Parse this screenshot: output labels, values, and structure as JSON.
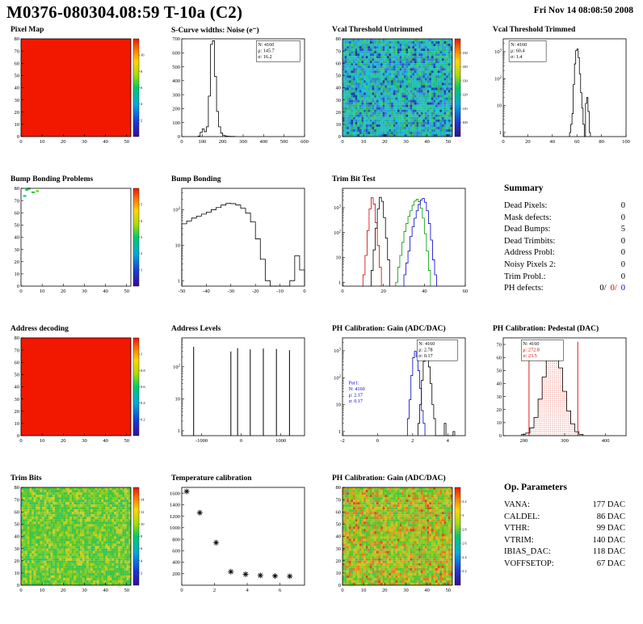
{
  "header": {
    "title": "M0376-080304.08:59 T-10a (C2)",
    "date": "Fri Nov 14 08:08:50 2008"
  },
  "summary": {
    "title": "Summary",
    "rows": [
      {
        "label": "Dead Pixels:",
        "value": "0"
      },
      {
        "label": "Mask defects:",
        "value": "0"
      },
      {
        "label": "Dead Bumps:",
        "value": "5"
      },
      {
        "label": "Dead Trimbits:",
        "value": "0"
      },
      {
        "label": "Address Probl:",
        "value": "0"
      },
      {
        "label": "Noisy Pixels 2:",
        "value": "0"
      },
      {
        "label": "Trim Probl.:",
        "value": "0"
      }
    ],
    "ph_defects_label": "PH defects:",
    "ph_defects": [
      "0/",
      "0/",
      "0"
    ]
  },
  "op_parameters": {
    "title": "Op. Parameters",
    "rows": [
      {
        "label": "VANA:",
        "value": "177 DAC"
      },
      {
        "label": "CALDEL:",
        "value": "86 DAC"
      },
      {
        "label": "VTHR:",
        "value": "99 DAC"
      },
      {
        "label": "VTRIM:",
        "value": "140 DAC"
      },
      {
        "label": "IBIAS_DAC:",
        "value": "118 DAC"
      },
      {
        "label": "VOFFSETOP:",
        "value": "67 DAC"
      }
    ]
  },
  "chart_data": [
    {
      "type": "heatmap",
      "title": "Pixel Map",
      "x_range": [
        0,
        52
      ],
      "x_ticks": [
        0,
        10,
        20,
        30,
        40,
        50
      ],
      "y_range": [
        0,
        80
      ],
      "y_ticks": [
        0,
        10,
        20,
        30,
        40,
        50,
        60,
        70,
        80
      ],
      "heatmap": {
        "mode": "uniform",
        "color": "#f21800"
      },
      "colorbar": {
        "labels": [
          "2",
          "4",
          "6",
          "8",
          "10"
        ]
      }
    },
    {
      "type": "hist",
      "title": "S-Curve widths: Noise (e⁻)",
      "x_range": [
        0,
        600
      ],
      "x_ticks": [
        0,
        100,
        200,
        300,
        400,
        500,
        600
      ],
      "y_range": [
        0,
        700
      ],
      "y_ticks": [
        0,
        100,
        200,
        300,
        400,
        500,
        600,
        700
      ],
      "series": [
        {
          "color": "#000000",
          "start": 80,
          "width": 10,
          "values": [
            4,
            30,
            55,
            35,
            70,
            290,
            660,
            690,
            430,
            180,
            70,
            25,
            10,
            5,
            3,
            2,
            1,
            1
          ]
        }
      ],
      "stats": [
        {
          "boxed": true,
          "px": 0.62,
          "py": 0.02,
          "w": 54,
          "lines": [
            {
              "t": "N: 4160",
              "c": "#000000"
            },
            {
              "t": "μ: 145.7",
              "c": "#000000"
            },
            {
              "t": "σ: 16.2",
              "c": "#000000"
            }
          ]
        }
      ]
    },
    {
      "type": "heatmap",
      "title": "Vcal Threshold Untrimmed",
      "x_range": [
        0,
        52
      ],
      "x_ticks": [
        0,
        10,
        20,
        30,
        40,
        50
      ],
      "y_range": [
        0,
        80
      ],
      "y_ticks": [
        0,
        10,
        20,
        30,
        40,
        50,
        60,
        70,
        80
      ],
      "heatmap": {
        "mode": "noise",
        "seed": 73,
        "cols": 52,
        "rows": 40,
        "colors": [
          "#2db35c",
          "#25c49a",
          "#1fc0c8",
          "#2aa3d4",
          "#2e7fd4",
          "#2257c0",
          "#16409c",
          "#38cc74"
        ],
        "weights": [
          0.13,
          0.17,
          0.2,
          0.17,
          0.13,
          0.09,
          0.05,
          0.06
        ]
      },
      "colorbar": {
        "labels": [
          "100",
          "110",
          "120",
          "130",
          "140",
          "150"
        ]
      }
    },
    {
      "type": "hist",
      "title": "Vcal Threshold Trimmed",
      "y_log": true,
      "x_range": [
        0,
        100
      ],
      "x_ticks": [
        0,
        20,
        40,
        60,
        80,
        100
      ],
      "y_range": [
        0.7,
        3000
      ],
      "y_ticks": [
        1,
        10,
        100,
        1000
      ],
      "y_tick_labels": [
        "1",
        "10",
        "10^2",
        "10^3"
      ],
      "series": [
        {
          "color": "#000000",
          "start": 54,
          "width": 1,
          "values": [
            1,
            2,
            5,
            60,
            350,
            1100,
            1250,
            600,
            150,
            30,
            8,
            2,
            0,
            12,
            20,
            6,
            1
          ]
        }
      ],
      "stats": [
        {
          "boxed": true,
          "px": 0.06,
          "py": 0.02,
          "w": 46,
          "lines": [
            {
              "t": "N: 4160",
              "c": "#000000"
            },
            {
              "t": "μ: 60.4",
              "c": "#000000"
            },
            {
              "t": "σ: 1.4",
              "c": "#000000"
            }
          ]
        }
      ]
    },
    {
      "type": "heatmap",
      "title": "Bump Bonding Problems",
      "x_range": [
        0,
        52
      ],
      "x_ticks": [
        0,
        10,
        20,
        30,
        40,
        50
      ],
      "y_range": [
        0,
        80
      ],
      "y_ticks": [
        0,
        10,
        20,
        30,
        40,
        50,
        60,
        70,
        80
      ],
      "heatmap": {
        "mode": "sparse",
        "base": "#ffffff",
        "points": [
          [
            2,
            78,
            "#22cc44"
          ],
          [
            5,
            76,
            "#22cc44"
          ],
          [
            1,
            73,
            "#00ccaa"
          ],
          [
            3,
            79,
            "#22cc44"
          ],
          [
            7,
            77,
            "#66dd22"
          ]
        ]
      },
      "colorbar": {
        "labels": [
          "1",
          "2",
          "3",
          "4",
          "5"
        ]
      }
    },
    {
      "type": "hist",
      "title": "Bump Bonding",
      "y_log": true,
      "x_range": [
        -50,
        0
      ],
      "x_ticks": [
        -50,
        -40,
        -30,
        -20,
        -10,
        0
      ],
      "y_range": [
        0.7,
        400
      ],
      "y_ticks": [
        1,
        10,
        100
      ],
      "y_tick_labels": [
        "1",
        "10",
        "10^2"
      ],
      "series": [
        {
          "color": "#000000",
          "start": -50,
          "width": 2,
          "values": [
            40,
            48,
            58,
            66,
            75,
            85,
            100,
            115,
            135,
            150,
            148,
            135,
            110,
            80,
            45,
            15,
            4,
            1,
            0,
            0,
            0,
            0,
            1,
            5,
            2
          ]
        }
      ]
    },
    {
      "type": "hist",
      "title": "Trim Bit Test",
      "y_log": true,
      "x_range": [
        0,
        60
      ],
      "x_ticks": [
        0,
        20,
        40,
        60
      ],
      "y_range": [
        0.7,
        6000
      ],
      "y_ticks": [
        1,
        10,
        100,
        1000
      ],
      "y_tick_labels": [
        "1",
        "10",
        "10^2",
        "10^3"
      ],
      "series": [
        {
          "color": "#cc0000",
          "start": 10,
          "width": 1,
          "values": [
            2,
            12,
            120,
            900,
            2500,
            1400,
            250,
            30,
            4
          ]
        },
        {
          "color": "#000000",
          "start": 14,
          "width": 1,
          "values": [
            3,
            20,
            150,
            900,
            2600,
            1800,
            400,
            60,
            8
          ]
        },
        {
          "color": "#009900",
          "start": 26,
          "width": 1,
          "values": [
            1,
            4,
            12,
            40,
            110,
            230,
            450,
            750,
            1250,
            1850,
            2200,
            1750,
            950,
            380,
            90,
            18,
            3
          ]
        },
        {
          "color": "#0000cc",
          "start": 30,
          "width": 1,
          "values": [
            2,
            6,
            18,
            70,
            170,
            380,
            750,
            1350,
            2050,
            2350,
            1650,
            750,
            230,
            50,
            8,
            2
          ]
        }
      ]
    },
    {
      "type": "heatmap",
      "title": "Address decoding",
      "x_range": [
        0,
        52
      ],
      "x_ticks": [
        0,
        10,
        20,
        30,
        40,
        50
      ],
      "y_range": [
        0,
        80
      ],
      "y_ticks": [
        0,
        10,
        20,
        30,
        40,
        50,
        60,
        70,
        80
      ],
      "heatmap": {
        "mode": "uniform",
        "color": "#f21800"
      },
      "colorbar": {
        "labels": [
          "0.2",
          "0.4",
          "0.6",
          "0.8",
          "1"
        ]
      }
    },
    {
      "type": "spikes",
      "title": "Address Levels",
      "y_log": true,
      "x_range": [
        -1500,
        1600
      ],
      "x_ticks": [
        -1000,
        0,
        1000
      ],
      "y_range": [
        0.7,
        800
      ],
      "y_ticks": [
        1,
        10,
        100
      ],
      "y_tick_labels": [
        "1",
        "10",
        "10^2"
      ],
      "spikes": {
        "color": "#000000",
        "positions": [
          -1200,
          -260,
          -90,
          230,
          560,
          890,
          1220
        ],
        "heights": [
          420,
          300,
          380,
          350,
          370,
          360,
          330
        ]
      }
    },
    {
      "type": "hist",
      "title": "PH Calibration: Gain (ADC/DAC)",
      "y_log": true,
      "x_range": [
        -2,
        5
      ],
      "x_ticks": [
        -2,
        0,
        2,
        4
      ],
      "y_range": [
        0.7,
        3000
      ],
      "y_ticks": [
        1,
        10,
        100,
        1000
      ],
      "y_tick_labels": [
        "1",
        "10",
        "10^2",
        "10^3"
      ],
      "series": [
        {
          "color": "#0000cc",
          "start": 1.7,
          "width": 0.1,
          "values": [
            3,
            15,
            120,
            550,
            950,
            600,
            180,
            40,
            6,
            2
          ]
        },
        {
          "color": "#000000",
          "start": 2.3,
          "width": 0.1,
          "values": [
            2,
            10,
            80,
            400,
            950,
            700,
            250,
            60,
            10,
            3,
            0,
            0,
            0,
            0,
            0,
            2,
            0,
            0,
            0,
            0,
            1
          ]
        }
      ],
      "stats": [
        {
          "boxed": true,
          "px": 0.62,
          "py": 0.02,
          "w": 50,
          "lines": [
            {
              "t": "N: 4160",
              "c": "#000000"
            },
            {
              "t": "μ: 2.78",
              "c": "#000000"
            },
            {
              "t": "σ: 0.17",
              "c": "#000000"
            }
          ]
        },
        {
          "boxed": false,
          "px": 0.05,
          "py": 0.42,
          "lines": [
            {
              "t": "Par1:",
              "c": "#0000cc"
            },
            {
              "t": "N: 4160",
              "c": "#0000cc"
            },
            {
              "t": "μ: 2.17",
              "c": "#0000cc"
            },
            {
              "t": "σ: 0.17",
              "c": "#0000cc"
            }
          ]
        }
      ]
    },
    {
      "type": "hist",
      "title": "PH Calibration: Pedestal (DAC)",
      "x_range": [
        150,
        450
      ],
      "x_ticks": [
        200,
        300,
        400
      ],
      "y_range": [
        0,
        75
      ],
      "y_ticks": [
        0,
        10,
        20,
        30,
        40,
        50,
        60,
        70
      ],
      "series": [
        {
          "color": "#000000",
          "fill": "dots",
          "start": 195,
          "width": 10,
          "values": [
            1,
            2,
            6,
            14,
            28,
            45,
            61,
            70,
            66,
            52,
            34,
            19,
            9,
            3,
            1
          ]
        }
      ],
      "vlines": [
        {
          "x": 213,
          "h": 72,
          "color": "#dd0000"
        },
        {
          "x": 332,
          "h": 72,
          "color": "#dd0000"
        }
      ],
      "stats": [
        {
          "boxed": true,
          "px": 0.16,
          "py": 0.02,
          "w": 52,
          "lines": [
            {
              "t": "N: 4160",
              "c": "#000000"
            },
            {
              "t": "μ: 272.8",
              "c": "#dd0000"
            },
            {
              "t": "σ: 23.5",
              "c": "#dd0000"
            }
          ]
        }
      ]
    },
    {
      "type": "heatmap",
      "title": "Trim Bits",
      "x_range": [
        0,
        52
      ],
      "x_ticks": [
        0,
        10,
        20,
        30,
        40,
        50
      ],
      "y_range": [
        0,
        80
      ],
      "y_ticks": [
        0,
        10,
        20,
        30,
        40,
        50,
        60,
        70,
        80
      ],
      "heatmap": {
        "mode": "noise",
        "seed": 421,
        "cols": 52,
        "rows": 40,
        "colors": [
          "#3ec43e",
          "#57c42e",
          "#7acc22",
          "#9ccc22",
          "#c4cc22",
          "#2ec460",
          "#d8cc22"
        ],
        "weights": [
          0.2,
          0.2,
          0.17,
          0.14,
          0.1,
          0.13,
          0.06
        ]
      },
      "colorbar": {
        "labels": [
          "2",
          "4",
          "6",
          "8",
          "10",
          "12",
          "14"
        ]
      }
    },
    {
      "type": "scatter",
      "title": "Temperature calibration",
      "x_range": [
        0,
        7.5
      ],
      "x_ticks": [
        0,
        2,
        4,
        6
      ],
      "y_range": [
        0,
        1700
      ],
      "y_ticks": [
        200,
        400,
        600,
        800,
        1000,
        1200,
        1400,
        1600
      ],
      "points": [
        [
          0.3,
          1630
        ],
        [
          1.1,
          1260
        ],
        [
          2.1,
          740
        ],
        [
          3.0,
          235
        ],
        [
          3.9,
          190
        ],
        [
          4.8,
          170
        ],
        [
          5.7,
          160
        ],
        [
          6.6,
          155
        ]
      ],
      "marker": {
        "shape": "star",
        "color": "#000000",
        "size": 3.5
      }
    },
    {
      "type": "heatmap",
      "title": "PH Calibration: Gain (ADC/DAC)",
      "x_range": [
        0,
        52
      ],
      "x_ticks": [
        0,
        10,
        20,
        30,
        40,
        50
      ],
      "y_range": [
        0,
        80
      ],
      "y_ticks": [
        0,
        10,
        20,
        30,
        40,
        50,
        60,
        70,
        80
      ],
      "heatmap": {
        "mode": "noise",
        "seed": 99,
        "cols": 52,
        "rows": 40,
        "colors": [
          "#57c42e",
          "#7acc22",
          "#9ccc22",
          "#ccc41e",
          "#e09c22",
          "#e87322",
          "#d84822",
          "#3ec45a"
        ],
        "weights": [
          0.18,
          0.18,
          0.16,
          0.15,
          0.13,
          0.1,
          0.05,
          0.05
        ]
      },
      "colorbar": {
        "labels": [
          "2.2",
          "2.4",
          "2.6",
          "2.8",
          "3",
          "3.2"
        ]
      }
    }
  ]
}
